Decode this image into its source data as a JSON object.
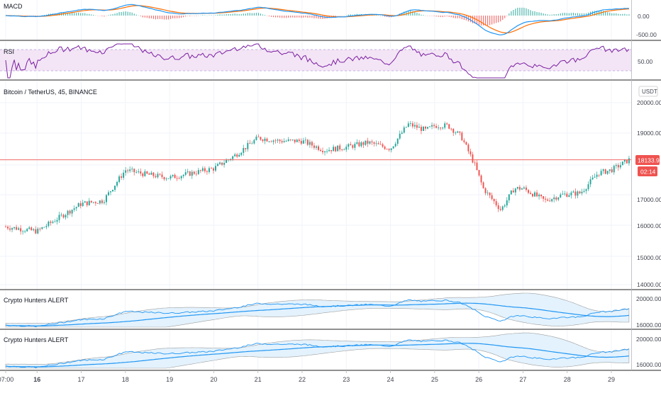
{
  "colors": {
    "up": "#26a69a",
    "down": "#ef5350",
    "grid": "#f0f3fa",
    "separator": "#222222",
    "macd_line": "#2196f3",
    "signal_line": "#ff6d00",
    "rsi_line": "#7b1fa2",
    "rsi_band": "#f3e5f5",
    "price_line": "#ef5350",
    "band_line": "#2196f3",
    "band_fill": "#e3f2fd",
    "band_edge": "#9e9e9e",
    "text": "#131722",
    "axis_text": "#434651"
  },
  "panes": {
    "macd": {
      "title": "MACD",
      "ticks": [
        "0.00",
        "-500.00"
      ]
    },
    "rsi": {
      "title": "RSI",
      "ticks": [
        "50.00"
      ]
    },
    "main": {
      "title": "Bitcoin / TetherUS, 45, BINANCE",
      "currency": "USDT",
      "ticks": [
        "20000.00",
        "19000.00",
        "17000.00",
        "16000.00",
        "15000.00",
        "14000.00"
      ],
      "price_label": "18133.93",
      "countdown": "02:14"
    },
    "alert1": {
      "title": "Crypto Hunters ALERT",
      "ticks": [
        "20000.00",
        "16000.00"
      ]
    },
    "alert2": {
      "title": "Crypto Hunters ALERT",
      "ticks": [
        "20000.00",
        "16000.00"
      ]
    }
  },
  "xaxis": {
    "labels": [
      "07:00",
      "16",
      "17",
      "18",
      "19",
      "20",
      "21",
      "22",
      "23",
      "24",
      "25",
      "26",
      "27",
      "28",
      "29"
    ]
  },
  "chart_data": {
    "type": "candlestick",
    "title": "Bitcoin / TetherUS, 45, BINANCE",
    "x_range": [
      "15 07:00",
      "29"
    ],
    "y_range": [
      14000,
      20000
    ],
    "last_price": 18133.93,
    "price_trend": [
      {
        "x": "15 07:00",
        "y": 15950
      },
      {
        "x": "16",
        "y": 15800
      },
      {
        "x": "17",
        "y": 16700
      },
      {
        "x": "17.5",
        "y": 16800
      },
      {
        "x": "18",
        "y": 17800
      },
      {
        "x": "18.5",
        "y": 17650
      },
      {
        "x": "19",
        "y": 17550
      },
      {
        "x": "19.5",
        "y": 17700
      },
      {
        "x": "20",
        "y": 17850
      },
      {
        "x": "20.5",
        "y": 18300
      },
      {
        "x": "21",
        "y": 18850
      },
      {
        "x": "21.5",
        "y": 18750
      },
      {
        "x": "22",
        "y": 18750
      },
      {
        "x": "22.5",
        "y": 18450
      },
      {
        "x": "23",
        "y": 18550
      },
      {
        "x": "23.5",
        "y": 18700
      },
      {
        "x": "24",
        "y": 18500
      },
      {
        "x": "24.4",
        "y": 19300
      },
      {
        "x": "24.8",
        "y": 19100
      },
      {
        "x": "25",
        "y": 19250
      },
      {
        "x": "25.3",
        "y": 19250
      },
      {
        "x": "25.6",
        "y": 18900
      },
      {
        "x": "25.9",
        "y": 18000
      },
      {
        "x": "26.1",
        "y": 17200
      },
      {
        "x": "26.5",
        "y": 16500
      },
      {
        "x": "26.8",
        "y": 17200
      },
      {
        "x": "27",
        "y": 17200
      },
      {
        "x": "27.5",
        "y": 16800
      },
      {
        "x": "27.9",
        "y": 17000
      },
      {
        "x": "28.3",
        "y": 17050
      },
      {
        "x": "28.7",
        "y": 17700
      },
      {
        "x": "29",
        "y": 17800
      },
      {
        "x": "29.4",
        "y": 18133.93
      }
    ]
  }
}
